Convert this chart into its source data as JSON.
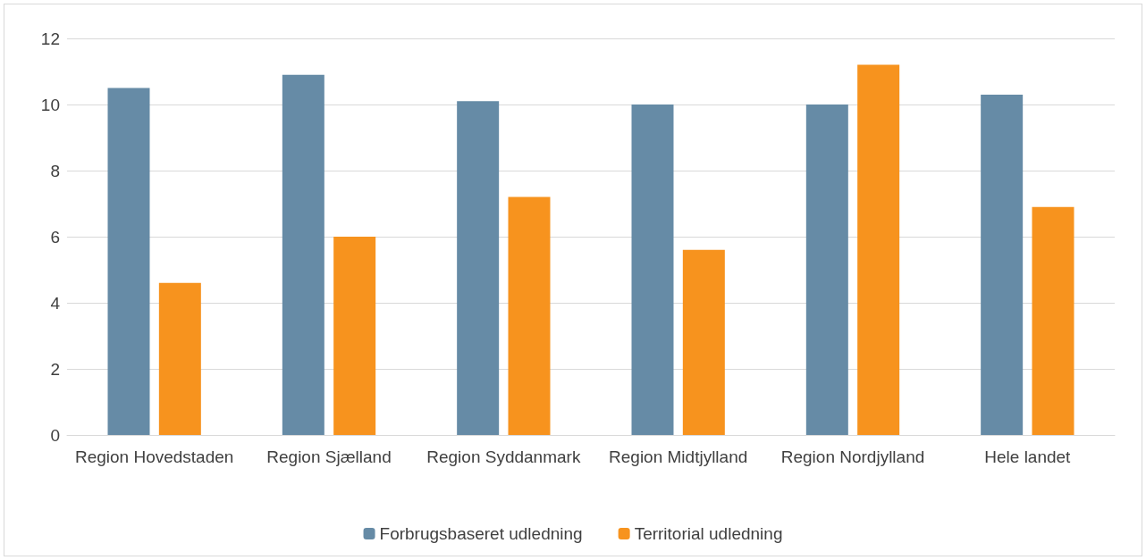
{
  "chart_data": {
    "type": "bar",
    "categories": [
      "Region Hovedstaden",
      "Region Sjælland",
      "Region Syddanmark",
      "Region Midtjylland",
      "Region Nordjylland",
      "Hele landet"
    ],
    "series": [
      {
        "name": "Forbrugsbaseret udledning",
        "color": "#668ba6",
        "values": [
          10.5,
          10.9,
          10.1,
          10.0,
          10.0,
          10.3
        ]
      },
      {
        "name": "Territorial udledning",
        "color": "#f7931e",
        "values": [
          4.6,
          6.0,
          7.2,
          5.6,
          11.2,
          6.9
        ]
      }
    ],
    "ylim": [
      0,
      12
    ],
    "yticks": [
      0,
      2,
      4,
      6,
      8,
      10,
      12
    ],
    "grid": "y",
    "legend": "bottom"
  }
}
